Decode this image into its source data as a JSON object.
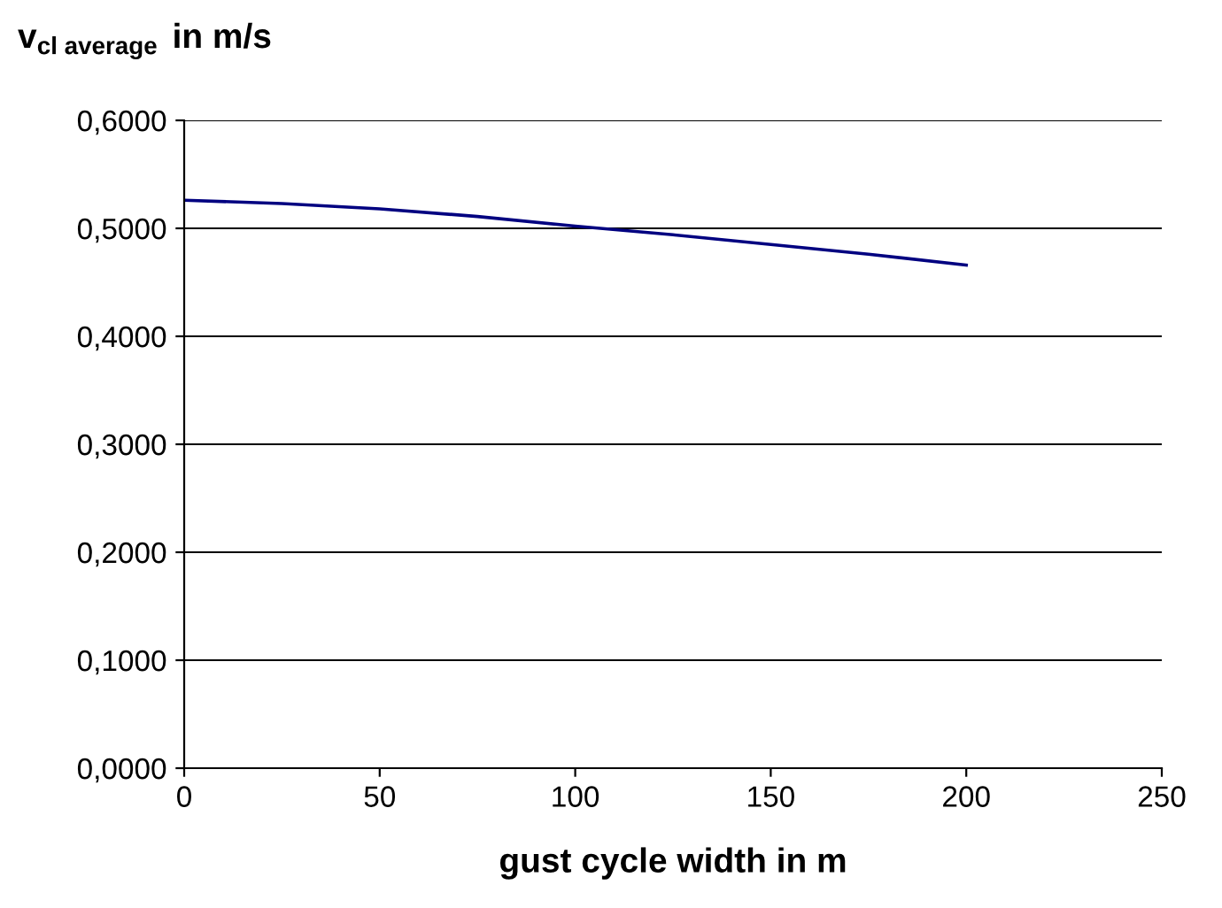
{
  "chart_data": {
    "type": "line",
    "ylabel": "v$_{cl average}$ in m/s",
    "xlabel": "gust cycle width in m",
    "x": [
      0,
      25,
      50,
      75,
      100,
      125,
      150,
      175,
      200
    ],
    "series": [
      {
        "color": "#000080",
        "values": [
          0.526,
          0.523,
          0.518,
          0.511,
          0.502,
          0.494,
          0.485,
          0.476,
          0.466
        ]
      }
    ],
    "xlim": [
      0,
      250
    ],
    "xticks": [
      0,
      50,
      100,
      150,
      200,
      250
    ],
    "ylim": [
      0,
      0.6
    ],
    "yticks": [
      {
        "value": 0,
        "label": "0,0000"
      },
      {
        "value": 0.1,
        "label": "0,1000"
      },
      {
        "value": 0.2,
        "label": "0,2000"
      },
      {
        "value": 0.3,
        "label": "0,3000"
      },
      {
        "value": 0.4,
        "label": "0,4000"
      },
      {
        "value": 0.5,
        "label": "0,5000"
      },
      {
        "value": 0.6,
        "label": "0,6000"
      }
    ],
    "grid": "y",
    "marker": "none",
    "line_style": "solid"
  }
}
